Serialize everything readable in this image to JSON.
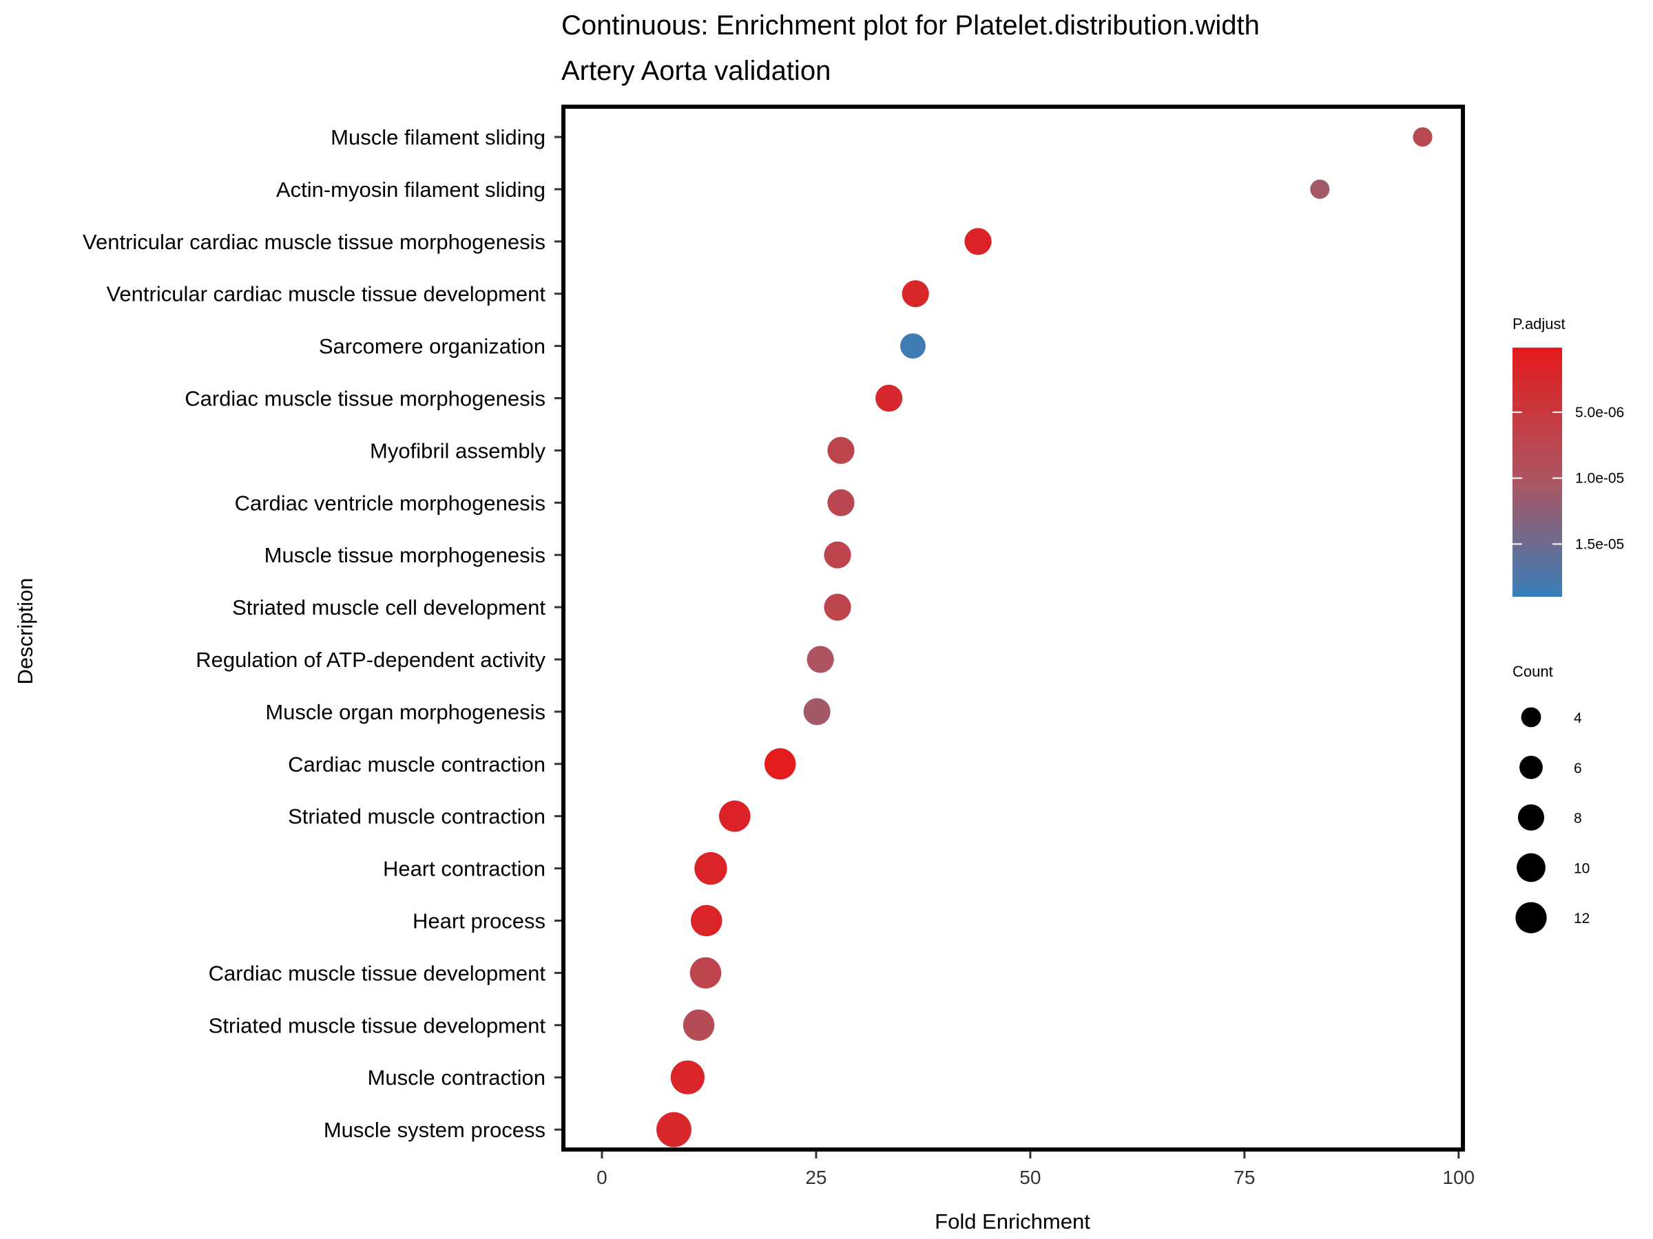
{
  "chart_data": {
    "type": "scatter",
    "title": "Continuous: Enrichment plot for Platelet.distribution.width",
    "subtitle": "Artery Aorta validation",
    "xlabel": "Fold Enrichment",
    "ylabel": "Description",
    "xlim": [
      -4.5,
      100.5
    ],
    "xticks": [
      0,
      25,
      50,
      75,
      100
    ],
    "grid": false,
    "legend_position": "right",
    "categories": [
      "Muscle filament sliding",
      "Actin-myosin filament sliding",
      "Ventricular cardiac muscle tissue morphogenesis",
      "Ventricular cardiac muscle tissue development",
      "Sarcomere organization",
      "Cardiac muscle tissue morphogenesis",
      "Myofibril assembly",
      "Cardiac ventricle morphogenesis",
      "Muscle tissue morphogenesis",
      "Striated muscle cell development",
      "Regulation of ATP-dependent activity",
      "Muscle organ morphogenesis",
      "Cardiac muscle contraction",
      "Striated muscle contraction",
      "Heart contraction",
      "Heart process",
      "Cardiac muscle tissue development",
      "Striated muscle tissue development",
      "Muscle contraction",
      "Muscle system process"
    ],
    "fold_enrichment": [
      95.8,
      83.8,
      43.9,
      36.6,
      36.3,
      33.5,
      27.9,
      27.9,
      27.5,
      27.5,
      25.5,
      25.1,
      20.8,
      15.5,
      12.7,
      12.2,
      12.1,
      11.3,
      10.0,
      8.4
    ],
    "count": [
      3,
      3,
      7,
      7,
      6,
      7,
      7,
      7,
      7,
      7,
      7,
      7,
      10,
      10,
      11,
      10,
      10,
      10,
      12,
      13
    ],
    "p_adjust": [
      8e-06,
      1.1e-05,
      1.5e-06,
      2.2e-06,
      1.85e-05,
      2.5e-06,
      7e-06,
      7.5e-06,
      7e-06,
      7e-06,
      1e-05,
      1.1e-05,
      3e-07,
      1.5e-06,
      1.8e-06,
      1.8e-06,
      7e-06,
      8.5e-06,
      2e-06,
      2.2e-06
    ],
    "color_legend": {
      "title": "P.adjust",
      "range": [
        1e-07,
        1.9e-05
      ],
      "low_color": "#e41a1c",
      "high_color": "#377eb8",
      "ticks": [
        {
          "value": 5e-06,
          "label": "5.0e-06"
        },
        {
          "value": 1e-05,
          "label": "1.0e-05"
        },
        {
          "value": 1.5e-05,
          "label": "1.5e-05"
        }
      ]
    },
    "size_legend": {
      "title": "Count",
      "values": [
        4,
        6,
        8,
        10,
        12
      ],
      "labels": [
        "4",
        "6",
        "8",
        "10",
        "12"
      ]
    }
  }
}
